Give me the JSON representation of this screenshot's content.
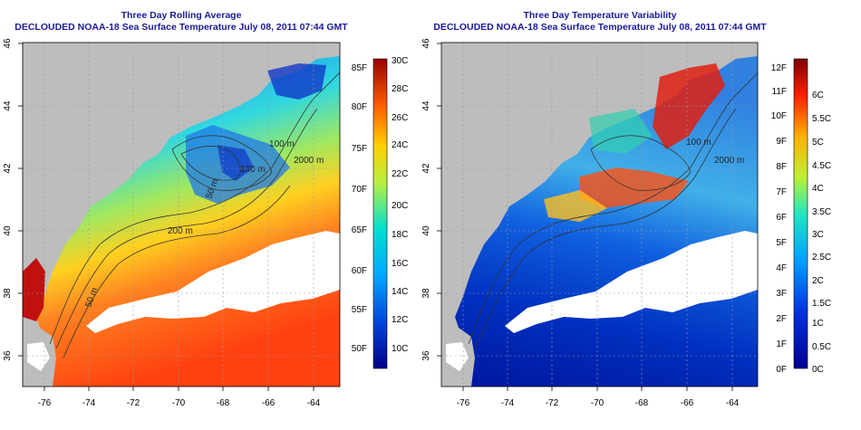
{
  "panels": [
    {
      "title": "Three Day Rolling Average",
      "subtitle": "DECLOUDED NOAA-18 Sea Surface Temperature July 08, 2011 07:44 GMT",
      "colorbar_left_labels": [
        "85F",
        "80F",
        "75F",
        "70F",
        "65F",
        "60F",
        "55F",
        "50F"
      ],
      "colorbar_right_labels": [
        "30C",
        "28C",
        "26C",
        "24C",
        "22C",
        "20C",
        "18C",
        "16C",
        "14C",
        "12C",
        "10C"
      ],
      "contour_labels": [
        "100 m",
        "2000 m",
        "100 m",
        "50 m",
        "200 m",
        "50 m"
      ]
    },
    {
      "title": "Three Day Temperature Variability",
      "subtitle": "DECLOUDED NOAA-18 Sea Surface Temperature July 08, 2011 07:44 GMT",
      "colorbar_left_labels": [
        "12F",
        "11F",
        "10F",
        "9F",
        "8F",
        "7F",
        "6F",
        "5F",
        "4F",
        "3F",
        "2F",
        "1F",
        "0F"
      ],
      "colorbar_right_labels": [
        "6C",
        "5.5C",
        "5C",
        "4.5C",
        "4C",
        "3.5C",
        "3C",
        "2.5C",
        "2C",
        "1.5C",
        "1C",
        "0.5C",
        "0C"
      ],
      "contour_labels": [
        "100 m",
        "2000 m"
      ]
    }
  ],
  "axes": {
    "x_ticks": [
      "-76",
      "-74",
      "-72",
      "-70",
      "-68",
      "-66",
      "-64"
    ],
    "y_ticks": [
      "46",
      "44",
      "42",
      "40",
      "38",
      "36"
    ]
  },
  "colors": {
    "land": "#bdbdbd",
    "title": "#1a1a9a"
  }
}
